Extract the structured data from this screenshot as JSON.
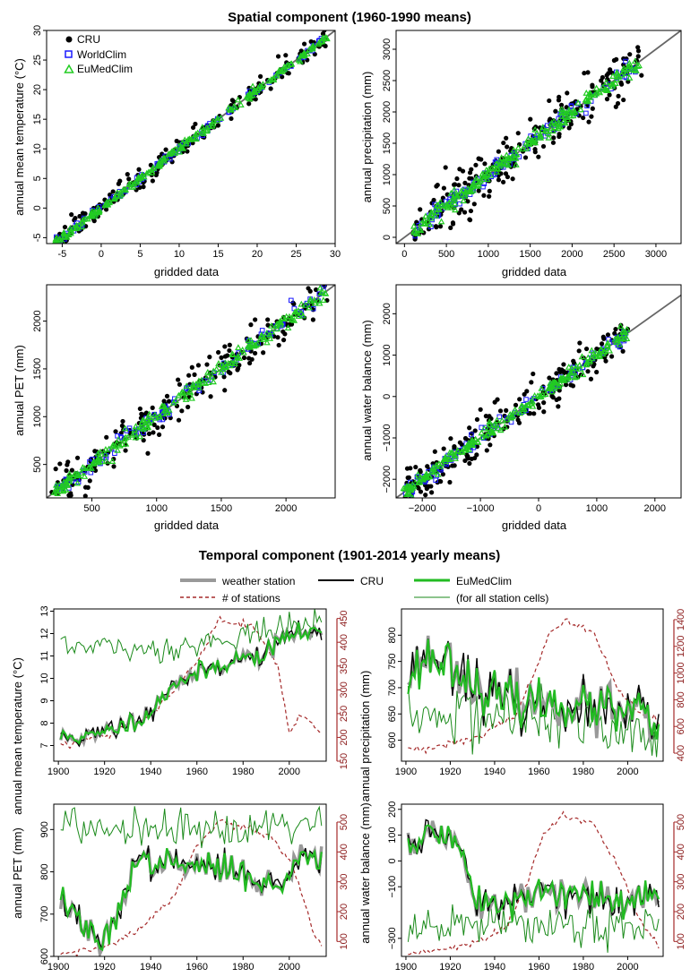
{
  "titles": {
    "spatial": "Spatial component (1960-1990 means)",
    "temporal": "Temporal component (1901-2014 yearly means)"
  },
  "legend_spatial": [
    {
      "label": "CRU",
      "marker": "filled-circle",
      "color": "#000000"
    },
    {
      "label": "WorldClim",
      "marker": "open-square",
      "color": "#1a1aff"
    },
    {
      "label": "EuMedClim",
      "marker": "open-triangle",
      "color": "#22cc22"
    }
  ],
  "legend_temporal": [
    {
      "label": "weather station",
      "style": "thick",
      "color": "#999999"
    },
    {
      "label": "CRU",
      "style": "solid",
      "color": "#000000"
    },
    {
      "label": "EuMedClim",
      "style": "thick",
      "color": "#22bb22"
    },
    {
      "label": "# of stations",
      "style": "dashed",
      "color": "#a52a2a"
    },
    {
      "label": "(for all station cells)",
      "style": "thin",
      "color": "#1a8a1a"
    }
  ],
  "chart_data": [
    {
      "type": "scatter",
      "id": "temp",
      "xlabel": "gridded data",
      "ylabel": "annual mean temperature (°C)",
      "xlim": [
        -7,
        30
      ],
      "ylim": [
        -6,
        30
      ],
      "xticks": [
        -5,
        0,
        5,
        10,
        15,
        20,
        25,
        30
      ],
      "yticks": [
        -5,
        0,
        5,
        10,
        15,
        20,
        25,
        30
      ],
      "series": [
        "CRU",
        "WorldClim",
        "EuMedClim"
      ],
      "diagonal": "1:1 line",
      "range": [
        -6,
        29
      ],
      "spread": [
        0.9,
        0.35
      ],
      "n_points": 220
    },
    {
      "type": "scatter",
      "id": "prec",
      "xlabel": "gridded data",
      "ylabel": "annual precipitation (mm)",
      "xlim": [
        -100,
        3300
      ],
      "ylim": [
        -100,
        3300
      ],
      "xticks": [
        0,
        500,
        1000,
        1500,
        2000,
        2500,
        3000
      ],
      "yticks": [
        0,
        500,
        1000,
        1500,
        2000,
        2500,
        3000
      ],
      "series": [
        "CRU",
        "WorldClim",
        "EuMedClim"
      ],
      "diagonal": "1:1 line",
      "range": [
        100,
        2800
      ],
      "spread": [
        220,
        70
      ],
      "n_points": 220
    },
    {
      "type": "scatter",
      "id": "pet",
      "xlabel": "gridded data",
      "ylabel": "annual PET (mm)",
      "xlim": [
        150,
        2380
      ],
      "ylim": [
        150,
        2380
      ],
      "xticks": [
        500,
        1000,
        1500,
        2000
      ],
      "yticks": [
        500,
        1000,
        1500,
        2000
      ],
      "series": [
        "CRU",
        "WorldClim",
        "EuMedClim"
      ],
      "diagonal": "1:1 line",
      "range": [
        220,
        2300
      ],
      "spread": [
        120,
        45
      ],
      "n_points": 220
    },
    {
      "type": "scatter",
      "id": "wb",
      "xlabel": "gridded data",
      "ylabel": "annual water balance (mm)",
      "xlim": [
        -2450,
        2450
      ],
      "ylim": [
        -2450,
        2700
      ],
      "xticks": [
        -2000,
        -1000,
        0,
        1000,
        2000
      ],
      "yticks": [
        -2000,
        -1000,
        0,
        1000,
        2000
      ],
      "xticklabels": [
        "−2000",
        "−1000",
        "0",
        "1000",
        "2000"
      ],
      "yticklabels": [
        "−2000",
        "−1000",
        "0",
        "1000",
        "2000"
      ],
      "series": [
        "CRU",
        "WorldClim",
        "EuMedClim"
      ],
      "diagonal": "1:1 line",
      "range": [
        -2300,
        1500
      ],
      "spread": [
        260,
        90
      ],
      "n_points": 220
    },
    {
      "type": "line",
      "id": "temp_ts",
      "ylabel": "annual mean temperature (°C)",
      "xlim": [
        1898,
        2016
      ],
      "ylim": [
        6.3,
        13.1
      ],
      "xticks": [
        1900,
        1920,
        1940,
        1960,
        1980,
        2000
      ],
      "yticks": [
        7,
        8,
        9,
        10,
        11,
        12,
        13
      ],
      "y2lim": [
        150,
        470
      ],
      "y2ticks": [
        150,
        200,
        250,
        300,
        350,
        400,
        450
      ],
      "anchors": [
        [
          1901,
          7.4
        ],
        [
          1915,
          7.4
        ],
        [
          1930,
          8.0
        ],
        [
          1940,
          8.5
        ],
        [
          1950,
          9.8
        ],
        [
          1960,
          10.2
        ],
        [
          1975,
          10.8
        ],
        [
          1990,
          11.1
        ],
        [
          2000,
          12.0
        ],
        [
          2014,
          12.0
        ]
      ],
      "cell_anchors": [
        [
          1901,
          11.4
        ],
        [
          1940,
          11.3
        ],
        [
          1960,
          11.5
        ],
        [
          1980,
          12.0
        ],
        [
          2000,
          12.2
        ],
        [
          2014,
          12.7
        ]
      ],
      "stations_anchors": [
        [
          1901,
          180
        ],
        [
          1920,
          205
        ],
        [
          1940,
          245
        ],
        [
          1950,
          300
        ],
        [
          1960,
          360
        ],
        [
          1970,
          450
        ],
        [
          1985,
          430
        ],
        [
          1995,
          350
        ],
        [
          2000,
          210
        ],
        [
          2005,
          250
        ],
        [
          2014,
          210
        ]
      ],
      "noise": 0.35,
      "cell_noise": 0.3,
      "seed": 11
    },
    {
      "type": "line",
      "id": "prec_ts",
      "ylabel": "annual precipitation (mm)",
      "xlim": [
        1898,
        2016
      ],
      "ylim": [
        560,
        850
      ],
      "xticks": [
        1900,
        1920,
        1940,
        1960,
        1980,
        2000
      ],
      "yticks": [
        600,
        650,
        700,
        750,
        800
      ],
      "y2lim": [
        340,
        1480
      ],
      "y2ticks": [
        400,
        600,
        800,
        1000,
        1200,
        1400
      ],
      "anchors": [
        [
          1901,
          720
        ],
        [
          1910,
          760
        ],
        [
          1920,
          750
        ],
        [
          1935,
          690
        ],
        [
          1950,
          670
        ],
        [
          1970,
          670
        ],
        [
          1990,
          660
        ],
        [
          2000,
          650
        ],
        [
          2014,
          640
        ]
      ],
      "cell_anchors": [
        [
          1901,
          640
        ],
        [
          1930,
          650
        ],
        [
          1960,
          640
        ],
        [
          1990,
          620
        ],
        [
          2014,
          610
        ]
      ],
      "stations_anchors": [
        [
          1901,
          420
        ],
        [
          1930,
          500
        ],
        [
          1950,
          700
        ],
        [
          1958,
          1000
        ],
        [
          1965,
          1300
        ],
        [
          1972,
          1380
        ],
        [
          1985,
          1300
        ],
        [
          1995,
          900
        ],
        [
          2005,
          700
        ],
        [
          2014,
          640
        ]
      ],
      "noise": 38,
      "cell_noise": 28,
      "seed": 23
    },
    {
      "type": "line",
      "id": "pet_ts",
      "ylabel": "annual PET (mm)",
      "xlim": [
        1898,
        2016
      ],
      "ylim": [
        600,
        960
      ],
      "xticks": [
        1900,
        1920,
        1940,
        1960,
        1980,
        2000
      ],
      "yticks": [
        600,
        700,
        800,
        900
      ],
      "y2lim": [
        50,
        560
      ],
      "y2ticks": [
        100,
        200,
        300,
        400,
        500
      ],
      "anchors": [
        [
          1901,
          740
        ],
        [
          1910,
          680
        ],
        [
          1918,
          620
        ],
        [
          1926,
          700
        ],
        [
          1932,
          820
        ],
        [
          1950,
          820
        ],
        [
          1965,
          810
        ],
        [
          1980,
          800
        ],
        [
          1995,
          760
        ],
        [
          2005,
          840
        ],
        [
          2014,
          830
        ]
      ],
      "cell_anchors": [
        [
          1901,
          900
        ],
        [
          1940,
          910
        ],
        [
          1970,
          905
        ],
        [
          2000,
          915
        ],
        [
          2014,
          920
        ]
      ],
      "stations_anchors": [
        [
          1901,
          60
        ],
        [
          1920,
          80
        ],
        [
          1935,
          140
        ],
        [
          1950,
          250
        ],
        [
          1960,
          420
        ],
        [
          1970,
          500
        ],
        [
          1980,
          480
        ],
        [
          1990,
          460
        ],
        [
          2000,
          380
        ],
        [
          2010,
          150
        ],
        [
          2014,
          80
        ]
      ],
      "noise": 28,
      "cell_noise": 22,
      "seed": 37
    },
    {
      "type": "line",
      "id": "wb_ts",
      "ylabel": "annual water balance (mm)",
      "xlim": [
        1898,
        2016
      ],
      "ylim": [
        -370,
        220
      ],
      "xticks": [
        1900,
        1920,
        1940,
        1960,
        1980,
        2000
      ],
      "yticks": [
        -300,
        -100,
        0,
        100,
        200
      ],
      "yticklabels": [
        "−300",
        "−100",
        "0",
        "100",
        "200"
      ],
      "y2lim": [
        50,
        560
      ],
      "y2ticks": [
        100,
        200,
        300,
        400,
        500
      ],
      "anchors": [
        [
          1901,
          50
        ],
        [
          1910,
          110
        ],
        [
          1925,
          60
        ],
        [
          1932,
          -150
        ],
        [
          1945,
          -180
        ],
        [
          1960,
          -120
        ],
        [
          1975,
          -140
        ],
        [
          1990,
          -150
        ],
        [
          2000,
          -170
        ],
        [
          2014,
          -120
        ]
      ],
      "cell_anchors": [
        [
          1901,
          -280
        ],
        [
          1930,
          -230
        ],
        [
          1960,
          -260
        ],
        [
          1990,
          -250
        ],
        [
          2014,
          -240
        ]
      ],
      "stations_anchors": [
        [
          1901,
          60
        ],
        [
          1930,
          90
        ],
        [
          1945,
          150
        ],
        [
          1955,
          300
        ],
        [
          1962,
          460
        ],
        [
          1970,
          520
        ],
        [
          1985,
          490
        ],
        [
          1995,
          360
        ],
        [
          2005,
          180
        ],
        [
          2014,
          90
        ]
      ],
      "noise": 55,
      "cell_noise": 35,
      "seed": 51
    }
  ]
}
